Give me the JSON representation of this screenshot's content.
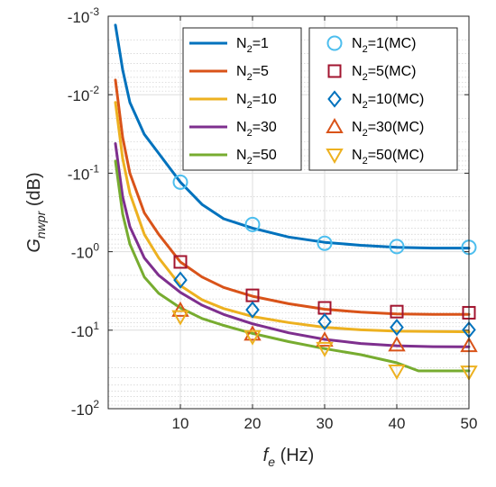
{
  "chart_data": {
    "type": "line",
    "title": "",
    "xlabel": {
      "main": "f",
      "sub": "e",
      "unit": "(Hz)"
    },
    "ylabel": {
      "main": "G",
      "sub": "nwpr",
      "unit": "(dB)"
    },
    "xlim": [
      0,
      50
    ],
    "ylim": [
      -100,
      -0.001
    ],
    "yscale": "log-magnitude (negative dB)",
    "x_ticks": [
      10,
      20,
      30,
      40,
      50
    ],
    "x_tick_labels": [
      "10",
      "20",
      "30",
      "40",
      "50"
    ],
    "y_ticks": [
      {
        "mantissa": "-10",
        "exp": "-3",
        "value": -0.001
      },
      {
        "mantissa": "-10",
        "exp": "-2",
        "value": -0.01
      },
      {
        "mantissa": "-10",
        "exp": "-1",
        "value": -0.1
      },
      {
        "mantissa": "-10",
        "exp": "0",
        "value": -1
      },
      {
        "mantissa": "-10",
        "exp": "1",
        "value": -10
      },
      {
        "mantissa": "-10",
        "exp": "2",
        "value": -100
      }
    ],
    "grid": true,
    "legend_position": "top-right (two boxes)",
    "series": [
      {
        "name": "N_2=1",
        "legend": {
          "base": "N",
          "sub": "2",
          "rest": "=1"
        },
        "color": "#0072BD",
        "x": [
          1,
          2,
          3,
          5,
          7,
          10,
          13,
          16,
          20,
          25,
          30,
          35,
          40,
          45,
          50
        ],
        "y": [
          -0.0013,
          -0.0048,
          -0.0125,
          -0.032,
          -0.056,
          -0.13,
          -0.25,
          -0.38,
          -0.5,
          -0.65,
          -0.76,
          -0.83,
          -0.88,
          -0.9,
          -0.9
        ]
      },
      {
        "name": "N_2=5",
        "legend": {
          "base": "N",
          "sub": "2",
          "rest": "=5"
        },
        "color": "#D95319",
        "x": [
          1,
          2,
          3,
          5,
          7,
          10,
          13,
          16,
          20,
          25,
          30,
          35,
          40,
          45,
          50
        ],
        "y": [
          -0.0065,
          -0.035,
          -0.1,
          -0.32,
          -0.6,
          -1.35,
          -2.1,
          -2.85,
          -3.7,
          -4.6,
          -5.4,
          -5.9,
          -6.2,
          -6.3,
          -6.3
        ]
      },
      {
        "name": "N_2=10",
        "legend": {
          "base": "N",
          "sub": "2",
          "rest": "=10"
        },
        "color": "#EDB120",
        "x": [
          1,
          2,
          3,
          5,
          7,
          10,
          13,
          16,
          20,
          25,
          30,
          35,
          40,
          45,
          50
        ],
        "y": [
          -0.0125,
          -0.065,
          -0.18,
          -0.6,
          -1.2,
          -2.7,
          -4.1,
          -5.3,
          -6.7,
          -8.0,
          -9.2,
          -9.9,
          -10.3,
          -10.4,
          -10.5
        ]
      },
      {
        "name": "N_2=30",
        "legend": {
          "base": "N",
          "sub": "2",
          "rest": "=30"
        },
        "color": "#7E2F8E",
        "x": [
          1,
          2,
          3,
          5,
          7,
          10,
          13,
          16,
          20,
          25,
          30,
          35,
          40,
          45,
          50
        ],
        "y": [
          -0.042,
          -0.2,
          -0.48,
          -1.2,
          -2.0,
          -3.3,
          -4.8,
          -6.3,
          -8.3,
          -10.8,
          -13.1,
          -14.8,
          -15.8,
          -16.2,
          -16.3
        ]
      },
      {
        "name": "N_2=50",
        "legend": {
          "base": "N",
          "sub": "2",
          "rest": "=50"
        },
        "color": "#77AC30",
        "x": [
          1,
          2,
          3,
          5,
          7,
          10,
          13,
          16,
          20,
          25,
          30,
          35,
          40,
          43,
          50
        ],
        "y": [
          -0.07,
          -0.33,
          -0.8,
          -2.1,
          -3.4,
          -5.2,
          -7.1,
          -8.7,
          -11.0,
          -14.0,
          -17.2,
          -20.5,
          -26.0,
          -33.0,
          -33.0
        ]
      },
      {
        "name": "N_2=1(MC)",
        "legend": {
          "base": "N",
          "sub": "2",
          "rest": "=1(MC)"
        },
        "color": "#4DBEEE",
        "marker": "circle",
        "x": [
          10,
          20,
          30,
          40,
          50
        ],
        "y": [
          -0.13,
          -0.45,
          -0.78,
          -0.86,
          -0.88
        ]
      },
      {
        "name": "N_2=5(MC)",
        "legend": {
          "base": "N",
          "sub": "2",
          "rest": "=5(MC)"
        },
        "color": "#A2142F",
        "marker": "square",
        "x": [
          10,
          20,
          30,
          40,
          50
        ],
        "y": [
          -1.35,
          -3.6,
          -5.2,
          -5.8,
          -6.0
        ]
      },
      {
        "name": "N_2=10(MC)",
        "legend": {
          "base": "N",
          "sub": "2",
          "rest": "=10(MC)"
        },
        "color": "#0072BD",
        "marker": "diamond",
        "x": [
          10,
          20,
          30,
          40,
          50
        ],
        "y": [
          -2.3,
          -5.5,
          -7.8,
          -9.2,
          -9.9
        ]
      },
      {
        "name": "N_2=30(MC)",
        "legend": {
          "base": "N",
          "sub": "2",
          "rest": "=30(MC)"
        },
        "color": "#D95319",
        "marker": "triangle-up",
        "x": [
          10,
          20,
          30,
          40,
          50
        ],
        "y": [
          -5.6,
          -11.3,
          -13.5,
          -15.5,
          -15.8
        ]
      },
      {
        "name": "N_2=50(MC)",
        "legend": {
          "base": "N",
          "sub": "2",
          "rest": "=50(MC)"
        },
        "color": "#EDB120",
        "marker": "triangle-down",
        "x": [
          10,
          20,
          30,
          40,
          50
        ],
        "y": [
          -6.7,
          -12.0,
          -17.0,
          -33.0,
          -34.0
        ]
      }
    ]
  }
}
